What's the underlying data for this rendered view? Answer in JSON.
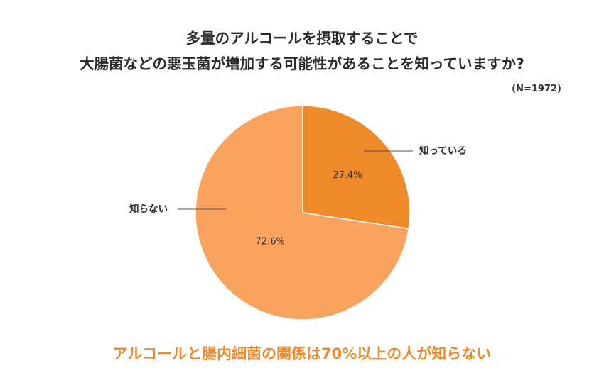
{
  "title_line1": "多量のアルコールを摂取することで",
  "title_line2": "大腸菌などの悪玉菌が増加する可能性があることを知っていますか?",
  "sample_size": "(N=1972)",
  "footer": "アルコールと腸内細菌の関係は70%以上の人が知らない",
  "colors": {
    "know": "#ef8a2a",
    "dont_know": "#f9a35f",
    "footer": "#ef8a2a"
  },
  "chart_data": {
    "type": "pie",
    "categories": [
      "知っている",
      "知らない"
    ],
    "values": [
      27.4,
      72.6
    ],
    "data_labels": [
      "27.4%",
      "72.6%"
    ],
    "title": "多量のアルコールを摂取することで 大腸菌などの悪玉菌が増加する可能性があることを知っていますか?",
    "start_angle": "12 o'clock, clockwise"
  }
}
